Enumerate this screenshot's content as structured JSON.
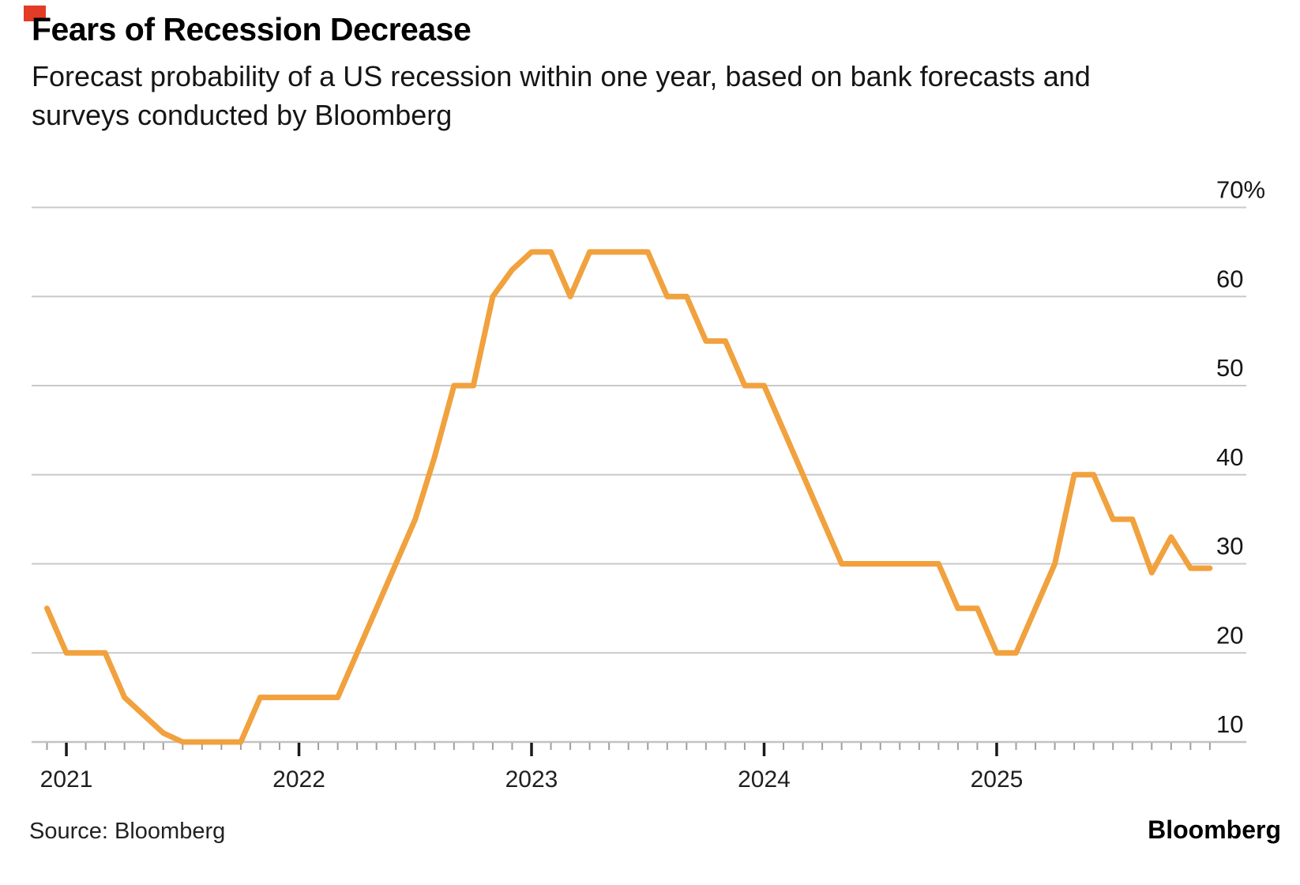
{
  "annotation": {
    "red_marker_color": "#E23B26"
  },
  "header": {
    "title": "Fears of Recession Decrease",
    "subtitle_line1": "Forecast probability of a US recession within one year, based on bank forecasts and",
    "subtitle_line2": "surveys conducted by Bloomberg"
  },
  "footer": {
    "source": "Source: Bloomberg",
    "brand": "Bloomberg"
  },
  "chart_data": {
    "type": "line",
    "title": "Fears of Recession Decrease",
    "subtitle": "Forecast probability of a US recession within one year, based on bank forecasts and surveys conducted by Bloomberg",
    "unit": "percent",
    "x_start": "2020-12",
    "x_freq": "monthly",
    "n_points": 61,
    "values": [
      25,
      20,
      20,
      20,
      15,
      13,
      11,
      10,
      10,
      10,
      10,
      15,
      15,
      15,
      15,
      15,
      20,
      25,
      30,
      35,
      42,
      50,
      50,
      60,
      63,
      65,
      65,
      60,
      65,
      65,
      65,
      65,
      60,
      60,
      55,
      55,
      50,
      50,
      45,
      40,
      35,
      30,
      30,
      30,
      30,
      30,
      30,
      25,
      25,
      20,
      20,
      25,
      30,
      40,
      40,
      35,
      35,
      29,
      33,
      29.5,
      29.5
    ],
    "x_tick_labels": [
      "2021",
      "2022",
      "2023",
      "2024",
      "2025"
    ],
    "y_ticks": [
      70,
      60,
      50,
      40,
      30,
      20,
      10
    ],
    "y_tick_labels": [
      "70%",
      "60",
      "50",
      "40",
      "30",
      "20",
      "10"
    ],
    "ylim": [
      10,
      70
    ],
    "grid": true,
    "legend": "none",
    "line_color": "#F1A13D",
    "grid_color": "#C9C9C9",
    "axis_color": "#C2C2C2",
    "tick_color": "#9E9E9E",
    "year_tick_color": "#1A1A1A",
    "label_color": "#161616"
  }
}
